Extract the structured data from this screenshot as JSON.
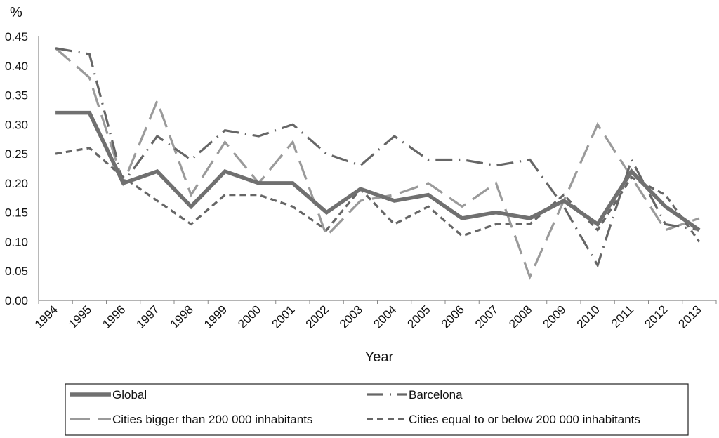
{
  "chart_data": {
    "type": "line",
    "title": "",
    "xlabel": "Year",
    "ylabel": "%",
    "ylim": [
      0,
      0.45
    ],
    "yticks": [
      "0.00",
      "0.05",
      "0.10",
      "0.15",
      "0.20",
      "0.25",
      "0.30",
      "0.35",
      "0.40",
      "0.45"
    ],
    "ytick_values": [
      0,
      0.05,
      0.1,
      0.15,
      0.2,
      0.25,
      0.3,
      0.35,
      0.4,
      0.45
    ],
    "categories": [
      "1994",
      "1995",
      "1996",
      "1997",
      "1998",
      "1999",
      "2000",
      "2001",
      "2002",
      "2003",
      "2004",
      "2005",
      "2006",
      "2007",
      "2008",
      "2009",
      "2010",
      "2011",
      "2012",
      "2013"
    ],
    "grid": false,
    "legend_position": "bottom",
    "series": [
      {
        "name": "Global",
        "style": "solid-thick",
        "color": "#707070",
        "values": [
          0.32,
          0.32,
          0.2,
          0.22,
          0.16,
          0.22,
          0.2,
          0.2,
          0.15,
          0.19,
          0.17,
          0.18,
          0.14,
          0.15,
          0.14,
          0.17,
          0.13,
          0.22,
          0.16,
          0.12
        ]
      },
      {
        "name": "Barcelona",
        "style": "dash-dot",
        "color": "#666666",
        "values": [
          0.43,
          0.42,
          0.2,
          0.28,
          0.24,
          0.29,
          0.28,
          0.3,
          0.25,
          0.23,
          0.28,
          0.24,
          0.24,
          0.23,
          0.24,
          0.16,
          0.06,
          0.24,
          0.13,
          0.12
        ]
      },
      {
        "name": "Cities bigger than 200 000 inhabitants",
        "style": "long-dash",
        "color": "#9a9a9a",
        "values": [
          0.43,
          0.38,
          0.2,
          0.34,
          0.18,
          0.27,
          0.2,
          0.27,
          0.11,
          0.17,
          0.18,
          0.2,
          0.16,
          0.2,
          0.04,
          0.17,
          0.3,
          0.21,
          0.12,
          0.14
        ]
      },
      {
        "name": "Cities equal to or below 200 000 inhabitants",
        "style": "short-dash",
        "color": "#666666",
        "values": [
          0.25,
          0.26,
          0.21,
          0.17,
          0.13,
          0.18,
          0.18,
          0.16,
          0.12,
          0.19,
          0.13,
          0.16,
          0.11,
          0.13,
          0.13,
          0.18,
          0.12,
          0.21,
          0.18,
          0.1
        ]
      }
    ]
  }
}
